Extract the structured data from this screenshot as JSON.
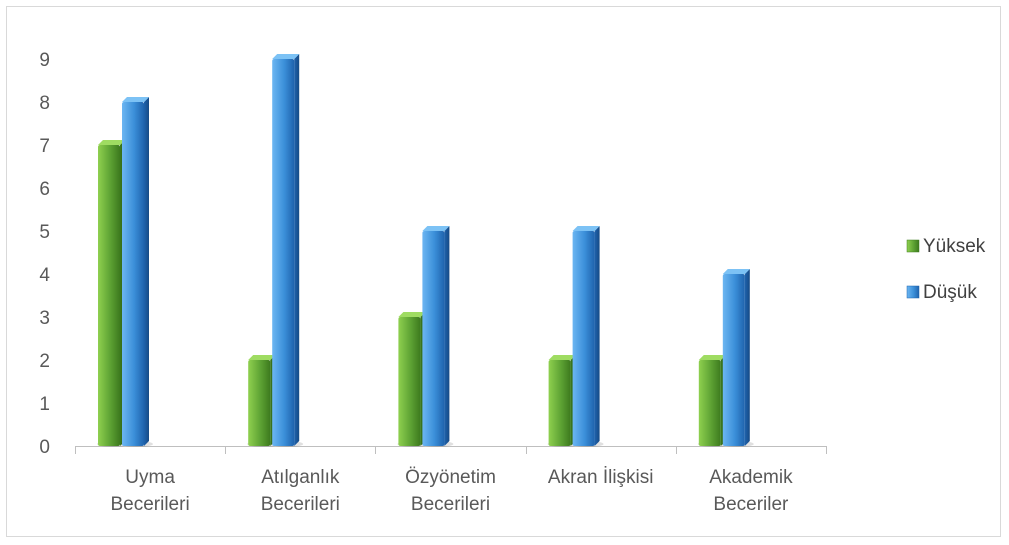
{
  "chart_data": {
    "type": "bar",
    "categories": [
      [
        "Uyma",
        "Becerileri"
      ],
      [
        "Atılganlık",
        "Becerileri"
      ],
      [
        "Özyönetim",
        "Becerileri"
      ],
      [
        "Akran İlişkisi"
      ],
      [
        "Akademik",
        "Beceriler"
      ]
    ],
    "series": [
      {
        "name": "Yüksek",
        "values": [
          7,
          2,
          3,
          2,
          2
        ],
        "color": "#5ea334"
      },
      {
        "name": "Düşük",
        "values": [
          8,
          9,
          5,
          5,
          4
        ],
        "color": "#3b8fd9"
      }
    ],
    "yticks": [
      0,
      1,
      2,
      3,
      4,
      5,
      6,
      7,
      8,
      9
    ],
    "ylim": [
      0,
      9
    ],
    "grid": false,
    "legend_position": "right",
    "style": "3d-cylinder-bars"
  }
}
